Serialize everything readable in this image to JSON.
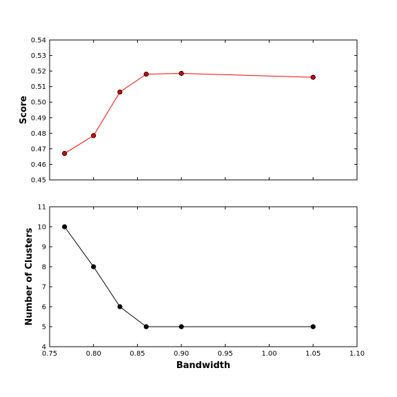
{
  "chart_data": [
    {
      "type": "line",
      "title": "",
      "xlabel": "",
      "ylabel": "Score",
      "xlim": [
        0.75,
        1.1
      ],
      "ylim": [
        0.45,
        0.54
      ],
      "xticks": [
        0.75,
        0.8,
        0.85,
        0.9,
        0.95,
        1.0,
        1.05,
        1.1
      ],
      "yticks": [
        "0.45",
        "0.46",
        "0.47",
        "0.48",
        "0.49",
        "0.50",
        "0.51",
        "0.52",
        "0.53",
        "0.54"
      ],
      "show_xtick_labels": false,
      "grid": false,
      "series": [
        {
          "color": "#ff0000",
          "marker_color": "#cc0000",
          "x": [
            0.767,
            0.8,
            0.83,
            0.86,
            0.9,
            1.05
          ],
          "y": [
            0.467,
            0.4785,
            0.5065,
            0.518,
            0.5185,
            0.516
          ]
        }
      ]
    },
    {
      "type": "line",
      "title": "",
      "xlabel": "Bandwidth",
      "ylabel": "Number of Clusters",
      "xlim": [
        0.75,
        1.1
      ],
      "ylim": [
        4,
        11
      ],
      "xticks": [
        "0.75",
        "0.80",
        "0.85",
        "0.90",
        "0.95",
        "1.00",
        "1.05",
        "1.10"
      ],
      "yticks": [
        "4",
        "5",
        "6",
        "7",
        "8",
        "9",
        "10",
        "11"
      ],
      "show_xtick_labels": true,
      "grid": false,
      "series": [
        {
          "color": "#000000",
          "marker_color": "#000000",
          "x": [
            0.767,
            0.8,
            0.83,
            0.86,
            0.9,
            1.05
          ],
          "y": [
            10,
            8,
            6,
            5,
            5,
            5
          ]
        }
      ]
    }
  ]
}
